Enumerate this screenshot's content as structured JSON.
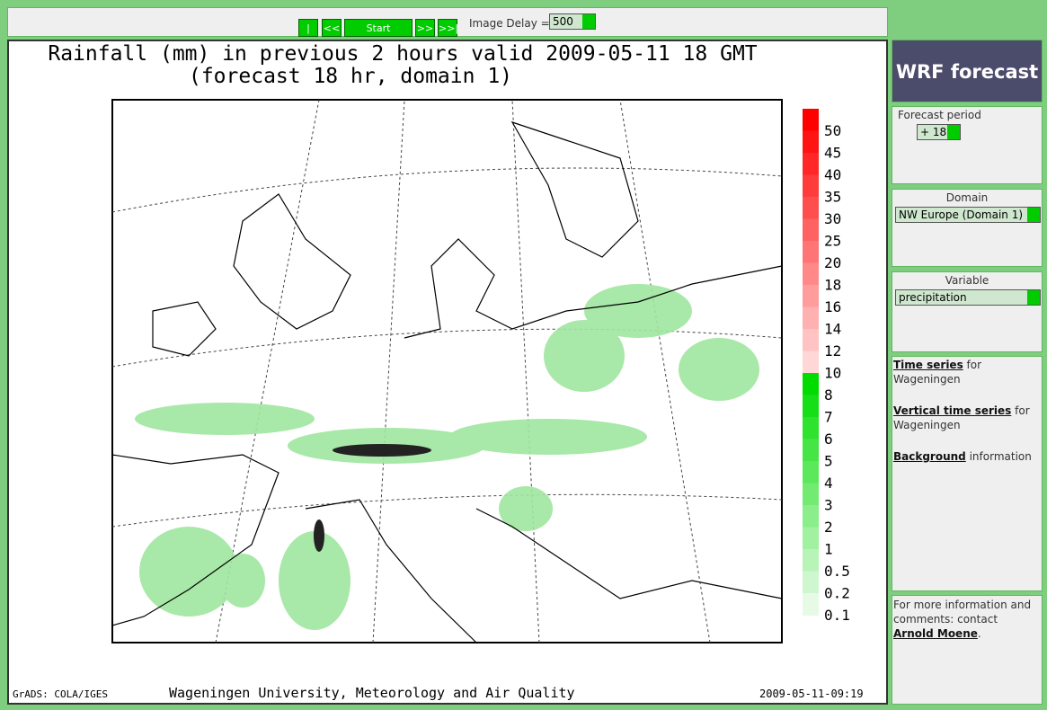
{
  "toolbar": {
    "buttons": [
      "|<<",
      "<<",
      "Start",
      ">>",
      ">>|"
    ],
    "delay_label": "Image Delay =",
    "delay_value": "500"
  },
  "map": {
    "title": "Rainfall (mm) in previous 2 hours valid 2009-05-11 18 GMT",
    "subtitle": "(forecast 18 hr, domain 1)",
    "colorbar_labels": [
      "50",
      "45",
      "40",
      "35",
      "30",
      "25",
      "20",
      "18",
      "16",
      "14",
      "12",
      "10",
      "8",
      "7",
      "6",
      "5",
      "4",
      "3",
      "2",
      "1",
      "0.5",
      "0.2",
      "0.1"
    ],
    "footer_left": "GrADS: COLA/IGES",
    "footer_center": "Wageningen University, Meteorology and Air Quality",
    "footer_right": "2009-05-11-09:19"
  },
  "sidebar": {
    "header": "WRF forecast",
    "forecast_period": {
      "label": "Forecast period",
      "value": "+ 18"
    },
    "domain": {
      "label": "Domain",
      "value": "NW Europe (Domain 1)"
    },
    "variable": {
      "label": "Variable",
      "value": "precipitation"
    },
    "links": [
      {
        "link": "Time series",
        "text": "for Wageningen"
      },
      {
        "link": "Vertical time series",
        "text": "for Wageningen"
      },
      {
        "link": "Background",
        "text": "information"
      }
    ],
    "contact": {
      "text": "For more information and comments: contact",
      "link": "Arnold Moene",
      "suffix": "."
    }
  }
}
